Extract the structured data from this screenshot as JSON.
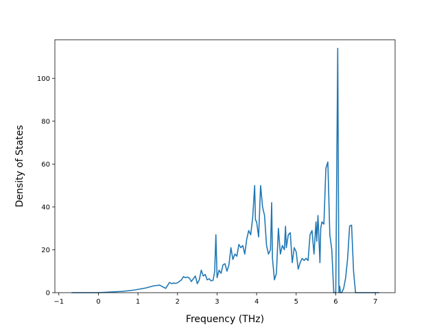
{
  "chart_data": {
    "type": "line",
    "title": "",
    "xlabel": "Frequency (THz)",
    "ylabel": "Density of States",
    "xlim": [
      -1.1,
      7.5
    ],
    "ylim": [
      0,
      118
    ],
    "xticks": [
      -1,
      0,
      1,
      2,
      3,
      4,
      5,
      6,
      7
    ],
    "yticks": [
      0,
      20,
      40,
      60,
      80,
      100
    ],
    "grid": false,
    "legend": "none",
    "series": [
      {
        "color": "#1f77b4",
        "x": [
          -0.68,
          -0.3,
          0.0,
          0.3,
          0.6,
          0.9,
          1.2,
          1.4,
          1.55,
          1.7,
          1.8,
          1.85,
          1.9,
          1.95,
          2.0,
          2.1,
          2.15,
          2.2,
          2.25,
          2.3,
          2.35,
          2.4,
          2.45,
          2.5,
          2.55,
          2.6,
          2.65,
          2.7,
          2.75,
          2.8,
          2.85,
          2.9,
          2.94,
          2.97,
          3.0,
          3.05,
          3.1,
          3.15,
          3.2,
          3.25,
          3.3,
          3.35,
          3.4,
          3.45,
          3.5,
          3.55,
          3.6,
          3.65,
          3.7,
          3.75,
          3.8,
          3.85,
          3.9,
          3.95,
          3.97,
          4.0,
          4.05,
          4.1,
          4.15,
          4.2,
          4.25,
          4.3,
          4.35,
          4.38,
          4.4,
          4.45,
          4.5,
          4.55,
          4.6,
          4.65,
          4.7,
          4.73,
          4.75,
          4.8,
          4.85,
          4.9,
          4.95,
          5.0,
          5.05,
          5.1,
          5.15,
          5.2,
          5.25,
          5.3,
          5.35,
          5.4,
          5.45,
          5.5,
          5.52,
          5.55,
          5.6,
          5.62,
          5.65,
          5.7,
          5.75,
          5.8,
          5.85,
          5.9,
          5.95,
          6.0,
          6.05,
          6.08,
          6.1,
          6.12,
          6.15,
          6.2,
          6.25,
          6.3,
          6.35,
          6.4,
          6.45,
          6.5,
          6.55,
          7.1
        ],
        "y": [
          0,
          0,
          0,
          0.3,
          0.6,
          1.2,
          2.2,
          3.2,
          3.5,
          2.0,
          4.8,
          4.2,
          4.5,
          4.3,
          4.6,
          6.0,
          7.5,
          7.0,
          7.3,
          6.8,
          5.2,
          6.5,
          7.8,
          4.2,
          6.0,
          10.5,
          7.8,
          8.5,
          6.0,
          6.5,
          5.5,
          5.8,
          10.0,
          27.0,
          7.0,
          10.5,
          9.0,
          13.0,
          13.5,
          10.0,
          13.0,
          21.0,
          15.5,
          18.0,
          17.0,
          22.5,
          21.0,
          22.0,
          18.0,
          25.0,
          29.0,
          27.0,
          35.0,
          50.0,
          34.0,
          33.0,
          26.0,
          50.0,
          40.0,
          36.0,
          22.0,
          18.0,
          20.0,
          42.0,
          16.0,
          6.0,
          9.0,
          30.0,
          18.0,
          22.0,
          20.0,
          31.0,
          21.0,
          27.0,
          28.0,
          14.0,
          21.0,
          19.0,
          11.0,
          14.0,
          16.0,
          15.0,
          16.0,
          15.0,
          27.0,
          29.0,
          18.0,
          33.0,
          24.0,
          36.0,
          14.0,
          30.0,
          33.0,
          32.0,
          58.0,
          61.0,
          27.0,
          20.0,
          0,
          0,
          114.0,
          0,
          3.0,
          0,
          0,
          2.0,
          7.0,
          16.0,
          31.0,
          31.5,
          10.0,
          0,
          0,
          0
        ]
      }
    ]
  }
}
